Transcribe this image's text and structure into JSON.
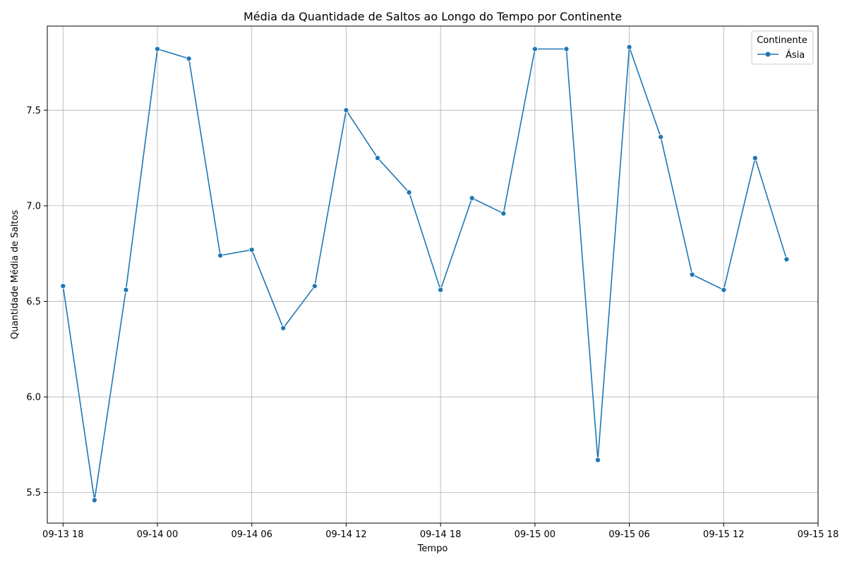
{
  "chart_data": {
    "type": "line",
    "title": "Média da Quantidade de Saltos ao Longo do Tempo por Continente",
    "xlabel": "Tempo",
    "ylabel": "Quantidade Média de Saltos",
    "x_ticks": [
      "09-13 18",
      "09-14 00",
      "09-14 06",
      "09-14 12",
      "09-14 18",
      "09-15 00",
      "09-15 06",
      "09-15 12",
      "09-15 18"
    ],
    "x_range": [
      "09-13 17",
      "09-15 18"
    ],
    "y_ticks": [
      "5.5",
      "6.0",
      "6.5",
      "7.0",
      "7.5"
    ],
    "ylim": [
      5.34,
      7.94
    ],
    "grid": true,
    "legend": {
      "title": "Continente",
      "placement": "top-right"
    },
    "series": [
      {
        "name": "Ásia",
        "color": "#1f77b4",
        "x": [
          "09-13 18",
          "09-13 20",
          "09-13 22",
          "09-14 00",
          "09-14 02",
          "09-14 04",
          "09-14 06",
          "09-14 08",
          "09-14 10",
          "09-14 12",
          "09-14 14",
          "09-14 16",
          "09-14 18",
          "09-14 20",
          "09-14 22",
          "09-15 00",
          "09-15 02",
          "09-15 04",
          "09-15 06",
          "09-15 08",
          "09-15 10",
          "09-15 12",
          "09-15 14",
          "09-15 16"
        ],
        "values": [
          6.58,
          5.46,
          6.56,
          7.82,
          7.77,
          6.74,
          6.77,
          6.36,
          6.58,
          7.5,
          7.25,
          7.07,
          6.56,
          7.04,
          6.96,
          7.82,
          7.82,
          5.67,
          7.83,
          7.36,
          6.64,
          6.56,
          7.25,
          6.72
        ]
      }
    ]
  }
}
